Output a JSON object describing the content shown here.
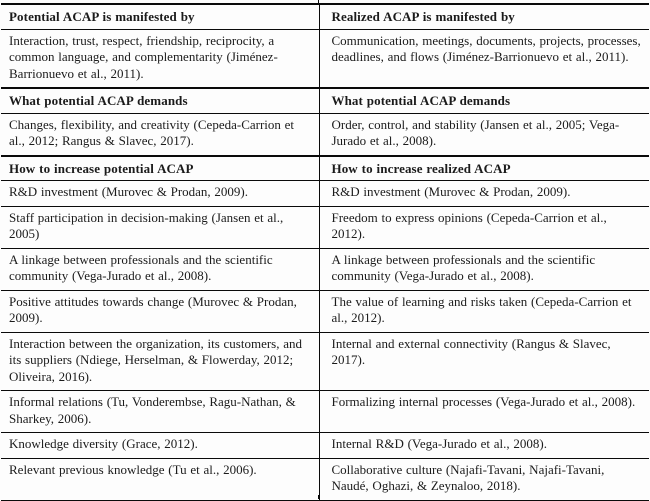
{
  "table": {
    "sections": [
      {
        "header": {
          "left": "Potential ACAP is manifested by",
          "right": "Realized ACAP is manifested by"
        },
        "rows": [
          {
            "left": "Interaction, trust, respect, friendship, reciprocity, a common language, and complementarity (Jiménez-Barrionuevo et al., 2011).",
            "right": "Communication, meetings, documents, projects, processes, deadlines, and flows (Jiménez-Barrionuevo et al., 2011)."
          }
        ]
      },
      {
        "header": {
          "left": "What potential ACAP demands",
          "right": "What potential ACAP demands"
        },
        "rows": [
          {
            "left": "Changes, flexibility, and creativity (Cepeda-Carrion et al., 2012; Rangus & Slavec, 2017).",
            "right": "Order, control, and stability (Jansen et al., 2005; Vega-Jurado et al., 2008)."
          }
        ]
      },
      {
        "header": {
          "left": "How to increase potential ACAP",
          "right": "How to increase realized ACAP"
        },
        "rows": [
          {
            "left": "R&D investment (Murovec & Prodan, 2009).",
            "right": "R&D investment (Murovec & Prodan, 2009)."
          },
          {
            "left": "Staff participation in decision-making (Jansen et al., 2005)",
            "right": "Freedom to express opinions (Cepeda-Carrion et al., 2012)."
          },
          {
            "left": "A linkage between professionals and the scientific community (Vega-Jurado et al., 2008).",
            "right": "A linkage between professionals and the scientific community (Vega-Jurado et al., 2008)."
          },
          {
            "left": "Positive attitudes towards change (Murovec & Prodan, 2009).",
            "right": "The value of learning and risks taken (Cepeda-Carrion et al., 2012)."
          },
          {
            "left": "Interaction between the organization, its customers, and its suppliers (Ndiege, Herselman, & Flowerday, 2012; Oliveira, 2016).",
            "right": "Internal and external connectivity (Rangus & Slavec, 2017)."
          },
          {
            "left": "Informal relations (Tu, Vonderembse, Ragu-Nathan, & Sharkey, 2006).",
            "right": "Formalizing internal processes (Vega-Jurado et al., 2008)."
          },
          {
            "left": "Knowledge diversity (Grace, 2012).",
            "right": "Internal R&D (Vega-Jurado et al., 2008)."
          },
          {
            "left": "Relevant previous knowledge (Tu et al., 2006).",
            "right": "Collaborative culture (Najafi-Tavani, Najafi-Tavani, Naudé, Oghazi, & Zeynaloo, 2018)."
          }
        ]
      }
    ],
    "colors": {
      "rule": "#0a0a0a",
      "text": "#1b1b1b",
      "background": "#fdfdfd"
    }
  }
}
